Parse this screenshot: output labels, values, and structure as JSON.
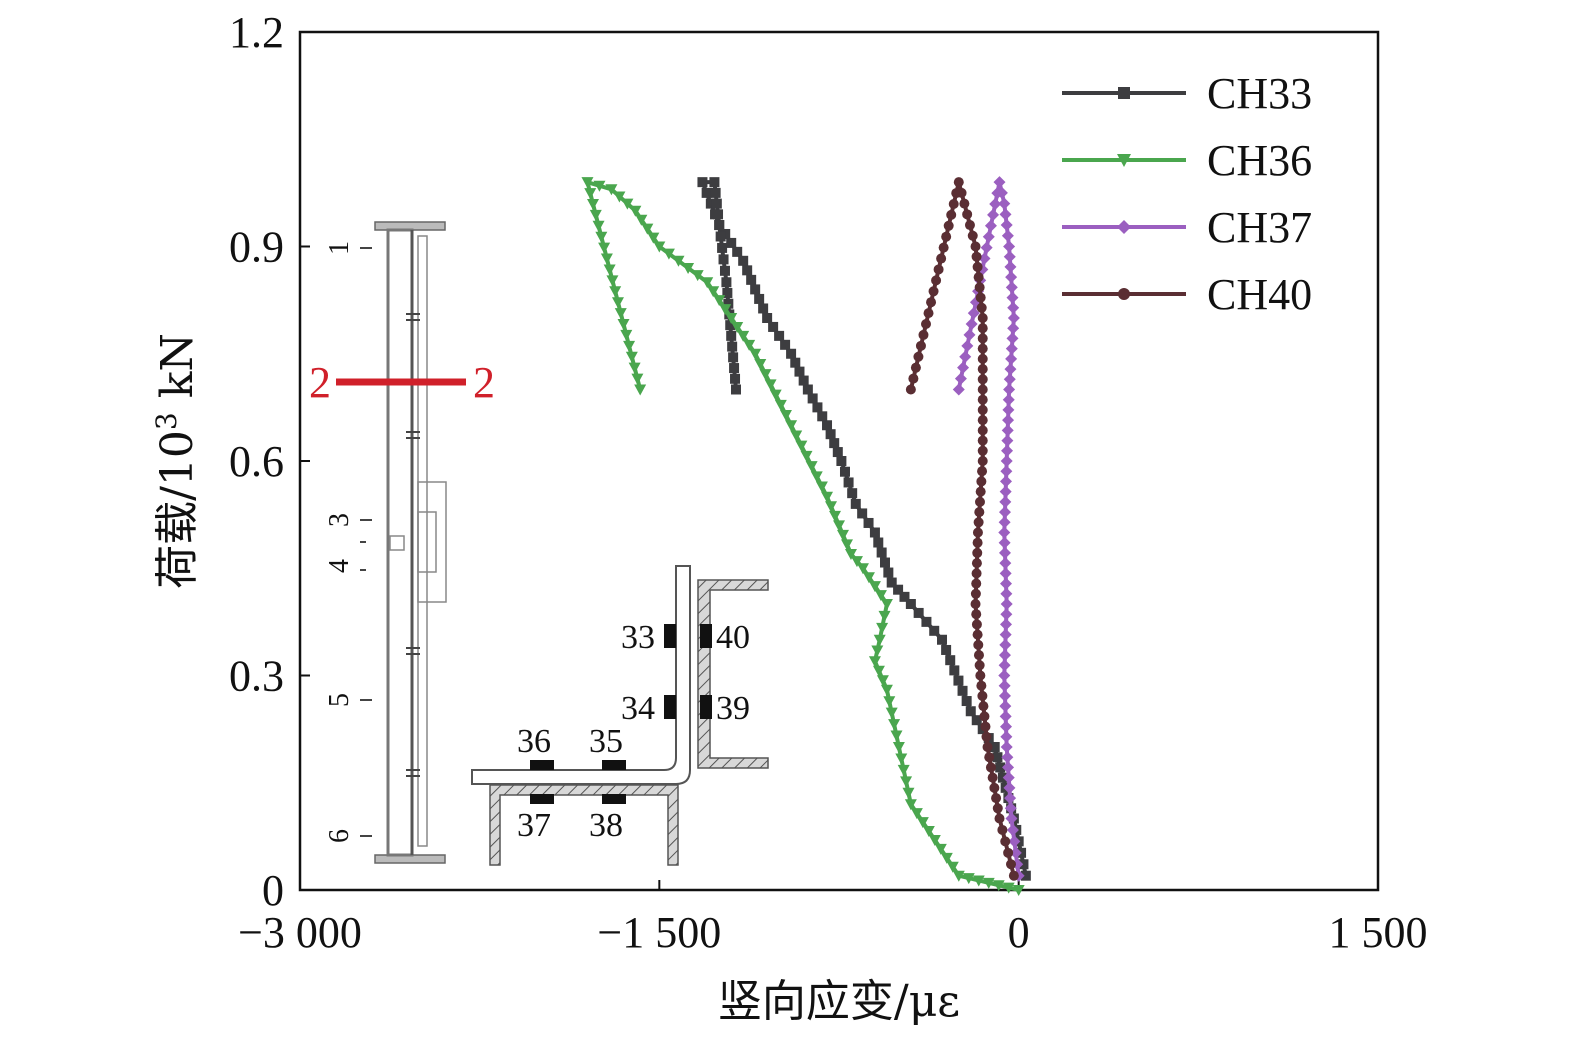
{
  "chart_data": {
    "type": "line",
    "xlabel": "竖向应变/με",
    "ylabel": "荷载/10³ kN",
    "ylabel_parts": {
      "main": "荷载/10",
      "sup": "3",
      "unit": " kN"
    },
    "xlim": [
      -3000,
      1500
    ],
    "ylim": [
      0,
      1.2
    ],
    "x_ticks": [
      -3000,
      -1500,
      0,
      1500
    ],
    "x_tick_labels": [
      "−3 000",
      "−1 500",
      "0",
      "1 500"
    ],
    "y_ticks": [
      0,
      0.3,
      0.6,
      0.9,
      1.2
    ],
    "y_tick_labels": [
      "0",
      "0.3",
      "0.6",
      "0.9",
      "1.2"
    ],
    "legend_position": "top-right",
    "series": [
      {
        "name": "CH33",
        "color": "#3d3d40",
        "marker": "square",
        "x": [
          30,
          -20,
          -100,
          -200,
          -320,
          -450,
          -530,
          -600,
          -680,
          -740,
          -800,
          -880,
          -950,
          -1050,
          -1150,
          -1250,
          -1320,
          -1270,
          -1250,
          -1220,
          -1180
        ],
        "y": [
          0.02,
          0.1,
          0.2,
          0.25,
          0.35,
          0.4,
          0.43,
          0.5,
          0.54,
          0.6,
          0.65,
          0.7,
          0.75,
          0.8,
          0.88,
          0.93,
          0.99,
          0.99,
          0.93,
          0.85,
          0.7
        ]
      },
      {
        "name": "CH36",
        "color": "#4aa64e",
        "marker": "triangle-down",
        "x": [
          0,
          -250,
          -350,
          -450,
          -500,
          -550,
          -600,
          -580,
          -550,
          -650,
          -700,
          -800,
          -950,
          -1100,
          -1200,
          -1300,
          -1500,
          -1600,
          -1700,
          -1800,
          -1580
        ],
        "y": [
          0,
          0.02,
          0.07,
          0.12,
          0.2,
          0.28,
          0.32,
          0.35,
          0.4,
          0.45,
          0.47,
          0.55,
          0.65,
          0.75,
          0.8,
          0.85,
          0.9,
          0.95,
          0.98,
          0.99,
          0.7
        ]
      },
      {
        "name": "CH37",
        "color": "#9b5fc0",
        "marker": "diamond",
        "x": [
          0,
          -30,
          -50,
          -60,
          -50,
          -60,
          -50,
          -40,
          -20,
          -40,
          -60,
          -80,
          -250
        ],
        "y": [
          0.02,
          0.1,
          0.2,
          0.3,
          0.4,
          0.5,
          0.6,
          0.7,
          0.8,
          0.9,
          0.96,
          0.99,
          0.7
        ]
      },
      {
        "name": "CH40",
        "color": "#5a2e33",
        "marker": "circle",
        "x": [
          -20,
          -80,
          -130,
          -160,
          -180,
          -170,
          -150,
          -150,
          -150,
          -180,
          -250,
          -450
        ],
        "y": [
          0.02,
          0.1,
          0.2,
          0.3,
          0.4,
          0.5,
          0.6,
          0.7,
          0.8,
          0.9,
          0.99,
          0.7
        ]
      }
    ]
  },
  "inset": {
    "section_label_left": "2",
    "section_label_right": "2",
    "column_labels": [
      "1",
      "3",
      "4",
      "5",
      "6"
    ],
    "gauge_labels": [
      "33",
      "34",
      "35",
      "36",
      "37",
      "38",
      "39",
      "40"
    ],
    "section_color": "#d0202a"
  }
}
